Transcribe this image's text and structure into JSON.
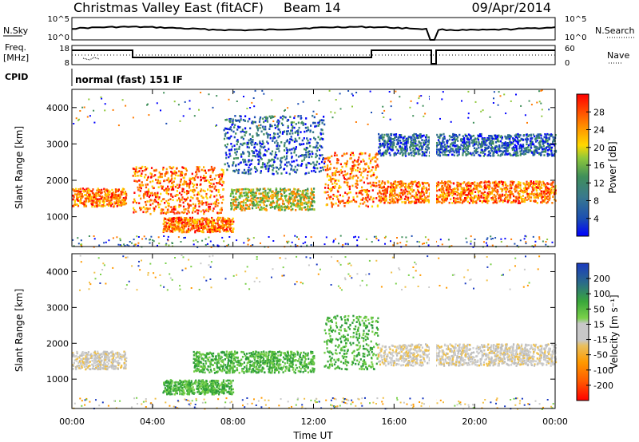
{
  "header": {
    "title": "Christmas Valley East (fitACF)",
    "beam": "Beam 14",
    "date": "09/Apr/2014"
  },
  "sky_panel": {
    "left_label": "N.Sky",
    "right_label": "N.Search",
    "left_ticks": [
      "10^5",
      "10^0"
    ],
    "right_ticks": [
      "10^5",
      "10^0"
    ]
  },
  "freq_panel": {
    "left_label_1": "Freq.",
    "left_label_2": "[MHz]",
    "right_label": "Nave",
    "left_ticks": [
      "18",
      "8"
    ],
    "right_ticks": [
      "60",
      "0"
    ]
  },
  "cpid": {
    "label": "CPID",
    "text": "normal (fast) 151 IF"
  },
  "chart_data": [
    {
      "type": "heatmap",
      "panel": "power",
      "ylabel": "Slant Range [km]",
      "xlabel": "Time UT",
      "y_ticks": [
        "1000",
        "2000",
        "3000",
        "4000"
      ],
      "ylim": [
        180,
        4500
      ],
      "colorbar": {
        "label": "Power [dB]",
        "ticks": [
          "4",
          "8",
          "12",
          "16",
          "20",
          "24",
          "28"
        ],
        "colors": [
          "#0000ff",
          "#1a4db3",
          "#3a7a8c",
          "#3f8f5a",
          "#4caf3a",
          "#8fc83a",
          "#c8dc2a",
          "#ffd800",
          "#ffaa00",
          "#ff7a00",
          "#ff4800",
          "#ff0000"
        ]
      },
      "features": [
        {
          "start": "00:00",
          "end": "02:40",
          "range_km": [
            1300,
            1800
          ],
          "level": "high"
        },
        {
          "start": "03:00",
          "end": "07:30",
          "range_km": [
            1100,
            2400
          ],
          "level": "high"
        },
        {
          "start": "04:30",
          "end": "08:00",
          "range_km": [
            600,
            1000
          ],
          "level": "high"
        },
        {
          "start": "07:50",
          "end": "12:00",
          "range_km": [
            1200,
            1800
          ],
          "level": "medium"
        },
        {
          "start": "07:30",
          "end": "12:30",
          "range_km": [
            2200,
            3800
          ],
          "level": "low"
        },
        {
          "start": "12:30",
          "end": "15:10",
          "range_km": [
            1300,
            2800
          ],
          "level": "high"
        },
        {
          "start": "15:10",
          "end": "24:00",
          "range_km": [
            1400,
            2000
          ],
          "level": "high"
        },
        {
          "start": "15:10",
          "end": "24:00",
          "range_km": [
            2700,
            3300
          ],
          "level": "low"
        }
      ]
    },
    {
      "type": "heatmap",
      "panel": "velocity",
      "ylabel": "Slant Range [km]",
      "xlabel": "Time UT",
      "y_ticks": [
        "1000",
        "2000",
        "3000",
        "4000"
      ],
      "ylim": [
        180,
        4500
      ],
      "x_ticks": [
        "00:00",
        "04:00",
        "08:00",
        "12:00",
        "16:00",
        "20:00",
        "00:00"
      ],
      "colorbar": {
        "label": "Velocity [m s⁻¹]",
        "ticks": [
          "-200",
          "-100",
          "-50",
          "-15",
          "15",
          "50",
          "100",
          "200"
        ],
        "colors": [
          "#ff0000",
          "#ff5a00",
          "#ff9a00",
          "#f0c048",
          "#c8c8c8",
          "#c8c8c8",
          "#7ad04a",
          "#3aa83a",
          "#2a7a5a",
          "#2a5aa0",
          "#1a3ac0"
        ]
      },
      "features": [
        {
          "start": "00:00",
          "end": "02:40",
          "range_km": [
            1300,
            1800
          ],
          "velocity": "near-zero"
        },
        {
          "start": "06:00",
          "end": "12:00",
          "range_km": [
            1200,
            1800
          ],
          "velocity": "positive"
        },
        {
          "start": "04:30",
          "end": "08:00",
          "range_km": [
            600,
            1000
          ],
          "velocity": "positive"
        },
        {
          "start": "12:30",
          "end": "15:10",
          "range_km": [
            1300,
            2800
          ],
          "velocity": "positive"
        },
        {
          "start": "15:10",
          "end": "24:00",
          "range_km": [
            1400,
            2000
          ],
          "velocity": "near-zero"
        }
      ]
    }
  ]
}
